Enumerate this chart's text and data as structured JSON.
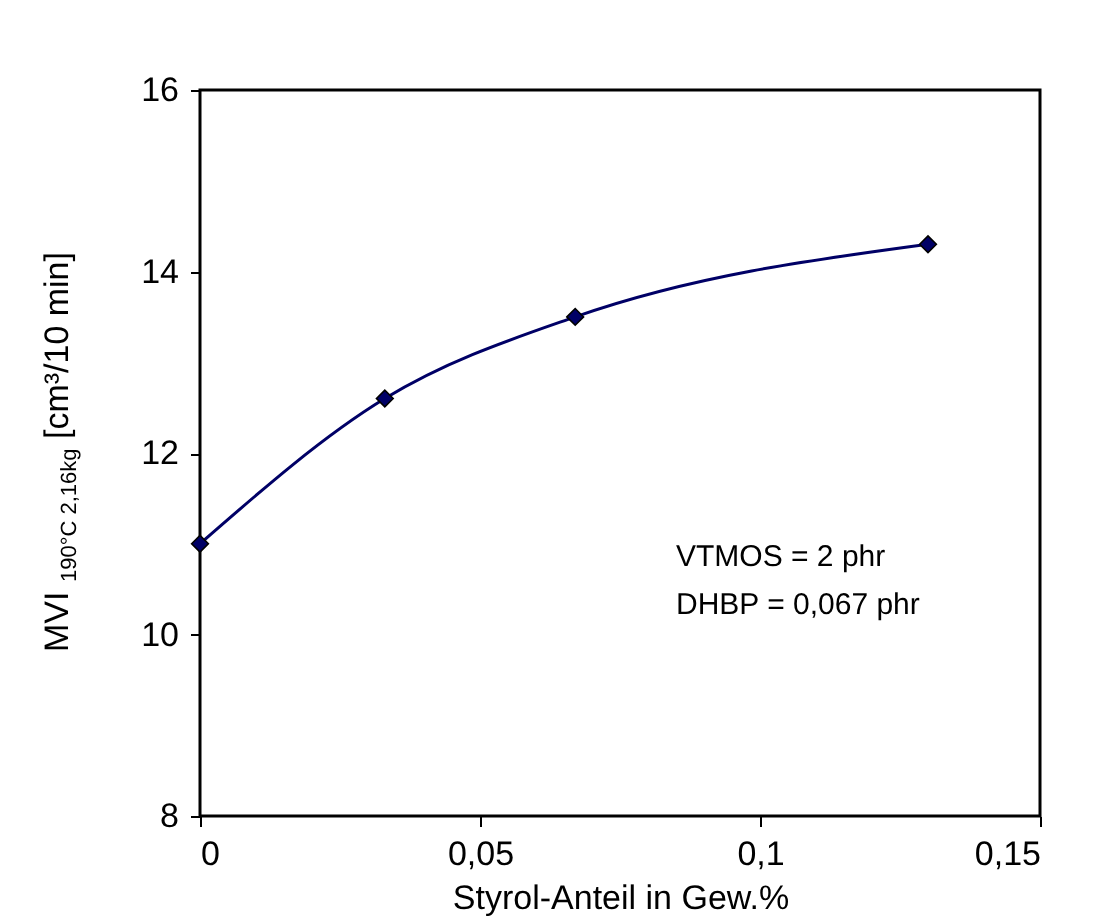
{
  "chart_data": {
    "type": "line",
    "xlabel": "Styrol-Anteil in Gew.%",
    "ylabel": "MVI $_{190°C 2,16kg}$ [cm³/10 min]",
    "x": [
      0,
      0.033,
      0.067,
      0.13
    ],
    "series": [
      {
        "color": "#000066",
        "values": [
          11,
          12.6,
          13.5,
          14.3
        ]
      }
    ],
    "xlim": [
      0,
      0.15
    ],
    "xticks": [
      0,
      {
        "value": 0.05,
        "label": "0,05"
      },
      {
        "value": 0.1,
        "label": "0,1"
      },
      {
        "value": 0.15,
        "label": "0,15"
      }
    ],
    "ylim": [
      8,
      16
    ],
    "yticks": [
      8,
      10,
      12,
      14,
      16
    ],
    "annotations": [
      "VTMOS = 2 phr",
      "DHBP = 0,067 phr"
    ],
    "marker": "diamond",
    "line_style": "solid",
    "grid": false
  }
}
